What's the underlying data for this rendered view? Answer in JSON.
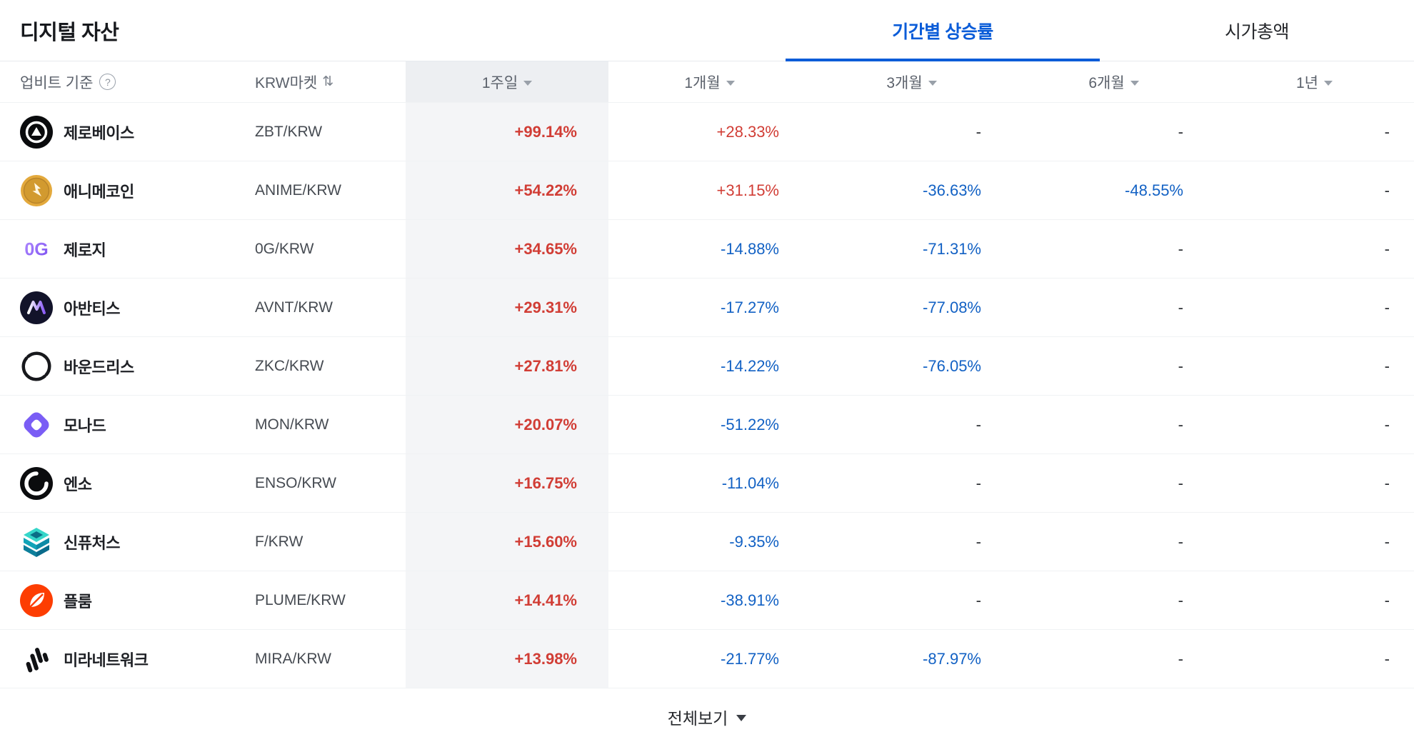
{
  "page": {
    "title": "디지털 자산",
    "tabs": [
      {
        "label": "기간별 상승률",
        "active": true
      },
      {
        "label": "시가총액",
        "active": false
      }
    ]
  },
  "colors": {
    "up": "#d13d35",
    "down": "#1261c4",
    "accent": "#0a5cd8"
  },
  "table": {
    "header": {
      "basis_label": "업비트 기준",
      "help_icon": "?",
      "market_label": "KRW마켓",
      "sort_icon": "⇅",
      "period_columns": [
        "1주일",
        "1개월",
        "3개월",
        "6개월",
        "1년"
      ]
    },
    "rows": [
      {
        "icon": "zerobase-icon",
        "name": "제로베이스",
        "pair": "ZBT/KRW",
        "values": [
          {
            "text": "+99.14%",
            "dir": "up"
          },
          {
            "text": "+28.33%",
            "dir": "up"
          },
          {
            "text": "-",
            "dir": "flat"
          },
          {
            "text": "-",
            "dir": "flat"
          },
          {
            "text": "-",
            "dir": "flat"
          }
        ]
      },
      {
        "icon": "anime-icon",
        "name": "애니메코인",
        "pair": "ANIME/KRW",
        "values": [
          {
            "text": "+54.22%",
            "dir": "up"
          },
          {
            "text": "+31.15%",
            "dir": "up"
          },
          {
            "text": "-36.63%",
            "dir": "down"
          },
          {
            "text": "-48.55%",
            "dir": "down"
          },
          {
            "text": "-",
            "dir": "flat"
          }
        ]
      },
      {
        "icon": "zerog-icon",
        "name": "제로지",
        "pair": "0G/KRW",
        "values": [
          {
            "text": "+34.65%",
            "dir": "up"
          },
          {
            "text": "-14.88%",
            "dir": "down"
          },
          {
            "text": "-71.31%",
            "dir": "down"
          },
          {
            "text": "-",
            "dir": "flat"
          },
          {
            "text": "-",
            "dir": "flat"
          }
        ]
      },
      {
        "icon": "avantis-icon",
        "name": "아반티스",
        "pair": "AVNT/KRW",
        "values": [
          {
            "text": "+29.31%",
            "dir": "up"
          },
          {
            "text": "-17.27%",
            "dir": "down"
          },
          {
            "text": "-77.08%",
            "dir": "down"
          },
          {
            "text": "-",
            "dir": "flat"
          },
          {
            "text": "-",
            "dir": "flat"
          }
        ]
      },
      {
        "icon": "boundless-icon",
        "name": "바운드리스",
        "pair": "ZKC/KRW",
        "values": [
          {
            "text": "+27.81%",
            "dir": "up"
          },
          {
            "text": "-14.22%",
            "dir": "down"
          },
          {
            "text": "-76.05%",
            "dir": "down"
          },
          {
            "text": "-",
            "dir": "flat"
          },
          {
            "text": "-",
            "dir": "flat"
          }
        ]
      },
      {
        "icon": "monad-icon",
        "name": "모나드",
        "pair": "MON/KRW",
        "values": [
          {
            "text": "+20.07%",
            "dir": "up"
          },
          {
            "text": "-51.22%",
            "dir": "down"
          },
          {
            "text": "-",
            "dir": "flat"
          },
          {
            "text": "-",
            "dir": "flat"
          },
          {
            "text": "-",
            "dir": "flat"
          }
        ]
      },
      {
        "icon": "enso-icon",
        "name": "엔소",
        "pair": "ENSO/KRW",
        "values": [
          {
            "text": "+16.75%",
            "dir": "up"
          },
          {
            "text": "-11.04%",
            "dir": "down"
          },
          {
            "text": "-",
            "dir": "flat"
          },
          {
            "text": "-",
            "dir": "flat"
          },
          {
            "text": "-",
            "dir": "flat"
          }
        ]
      },
      {
        "icon": "synfutures-icon",
        "name": "신퓨처스",
        "pair": "F/KRW",
        "values": [
          {
            "text": "+15.60%",
            "dir": "up"
          },
          {
            "text": "-9.35%",
            "dir": "down"
          },
          {
            "text": "-",
            "dir": "flat"
          },
          {
            "text": "-",
            "dir": "flat"
          },
          {
            "text": "-",
            "dir": "flat"
          }
        ]
      },
      {
        "icon": "plume-icon",
        "name": "플룸",
        "pair": "PLUME/KRW",
        "values": [
          {
            "text": "+14.41%",
            "dir": "up"
          },
          {
            "text": "-38.91%",
            "dir": "down"
          },
          {
            "text": "-",
            "dir": "flat"
          },
          {
            "text": "-",
            "dir": "flat"
          },
          {
            "text": "-",
            "dir": "flat"
          }
        ]
      },
      {
        "icon": "mira-icon",
        "name": "미라네트워크",
        "pair": "MIRA/KRW",
        "values": [
          {
            "text": "+13.98%",
            "dir": "up"
          },
          {
            "text": "-21.77%",
            "dir": "down"
          },
          {
            "text": "-87.97%",
            "dir": "down"
          },
          {
            "text": "-",
            "dir": "flat"
          },
          {
            "text": "-",
            "dir": "flat"
          }
        ]
      }
    ]
  },
  "footer": {
    "view_all_label": "전체보기"
  }
}
